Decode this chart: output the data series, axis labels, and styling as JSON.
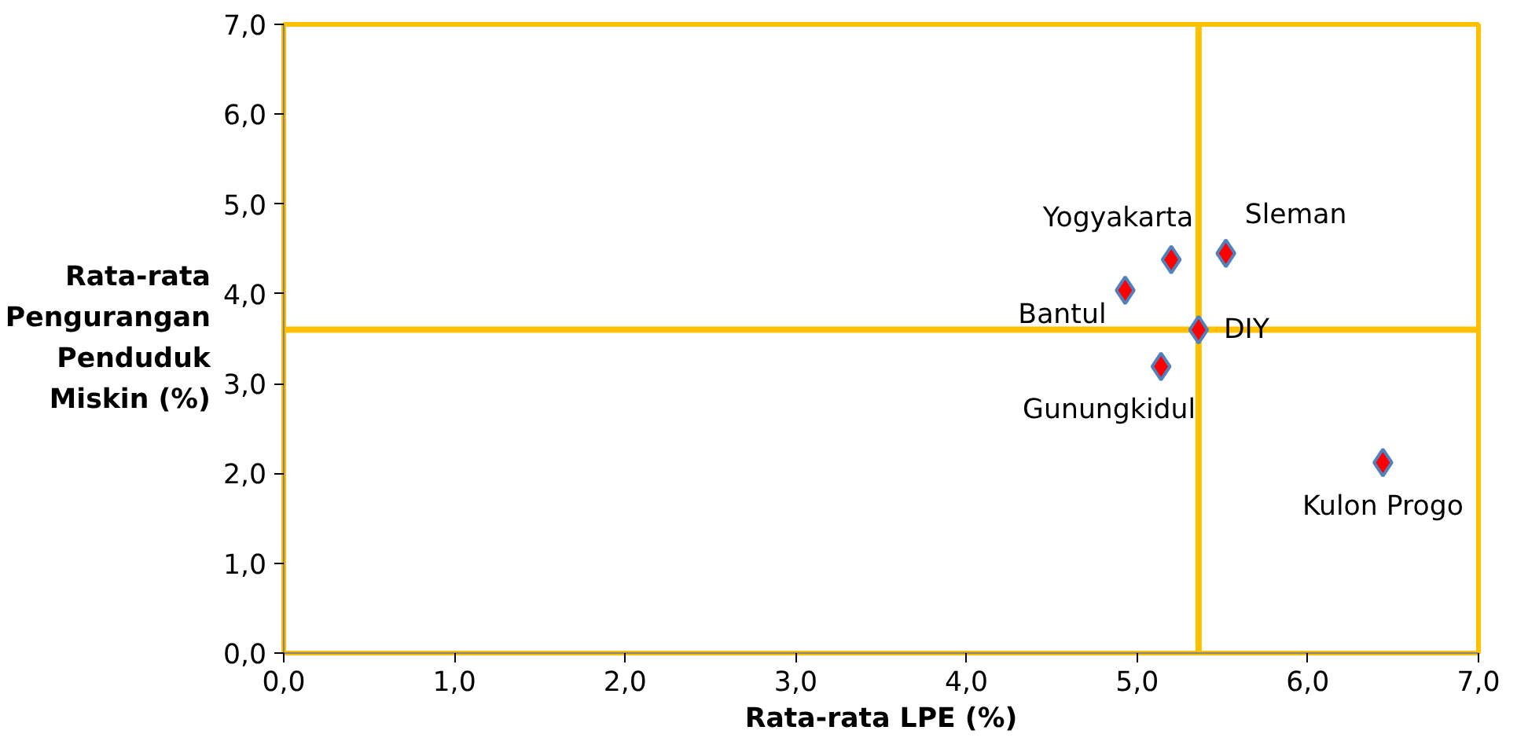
{
  "chart_data": {
    "type": "scatter",
    "xlabel": "Rata-rata LPE (%)",
    "ylabel": "Rata-rata\nPengurangan\nPenduduk\nMiskin (%)",
    "x": [
      4.93,
      5.2,
      5.52,
      5.14,
      5.36,
      6.44
    ],
    "series": [
      {
        "color": "#ff0000",
        "values": [
          4.04,
          4.38,
          4.45,
          3.19,
          3.6,
          2.12
        ]
      }
    ],
    "marker": "diamond",
    "xlim": [
      0,
      7
    ],
    "ylim": [
      0,
      7
    ],
    "xticks": [
      {
        "value": 0,
        "label": "0,0"
      },
      {
        "value": 1,
        "label": "1,0"
      },
      {
        "value": 2,
        "label": "2,0"
      },
      {
        "value": 3,
        "label": "3,0"
      },
      {
        "value": 4,
        "label": "4,0"
      },
      {
        "value": 5,
        "label": "5,0"
      },
      {
        "value": 6,
        "label": "6,0"
      },
      {
        "value": 7,
        "label": "7,0"
      }
    ],
    "yticks": [
      {
        "value": 0,
        "label": "0,0"
      },
      {
        "value": 1,
        "label": "1,0"
      },
      {
        "value": 2,
        "label": "2,0"
      },
      {
        "value": 3,
        "label": "3,0"
      },
      {
        "value": 4,
        "label": "4,0"
      },
      {
        "value": 5,
        "label": "5,0"
      },
      {
        "value": 6,
        "label": "6,0"
      },
      {
        "value": 7,
        "label": "7,0"
      }
    ],
    "ref_lines": [
      {
        "axis": "x",
        "value": 5.36,
        "color": "#ffc000"
      },
      {
        "axis": "y",
        "value": 3.6,
        "color": "#ffc000"
      }
    ],
    "annotations": [
      {
        "text": "Bantul",
        "x": 4.93,
        "y": 4.04
      },
      {
        "text": "Yogyakarta",
        "x": 5.2,
        "y": 4.38
      },
      {
        "text": "Sleman",
        "x": 5.52,
        "y": 4.45
      },
      {
        "text": "Gunungkidul",
        "x": 5.14,
        "y": 3.19
      },
      {
        "text": "DIY",
        "x": 5.36,
        "y": 3.6
      },
      {
        "text": "Kulon Progo",
        "x": 6.44,
        "y": 2.12
      }
    ]
  }
}
